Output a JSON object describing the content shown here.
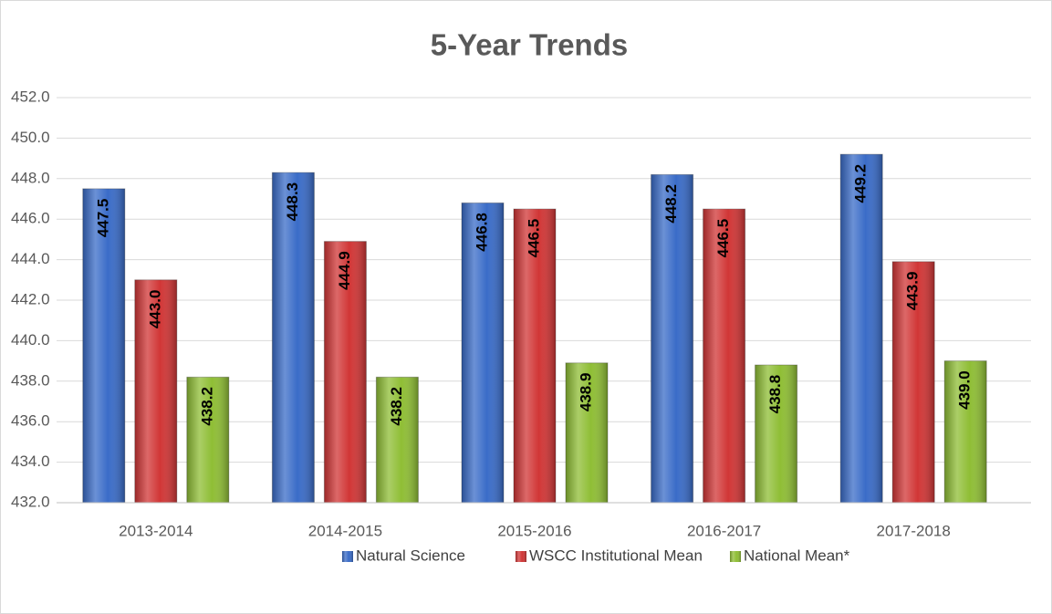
{
  "chart_data": {
    "type": "bar",
    "title": "5-Year Trends",
    "categories": [
      "2013-2014",
      "2014-2015",
      "2015-2016",
      "2016-2017",
      "2017-2018"
    ],
    "series": [
      {
        "name": "Natural Science",
        "color": "#3a6cc8",
        "values": [
          447.5,
          448.3,
          446.8,
          448.2,
          449.2
        ],
        "value_labels": [
          "447.5",
          "448.3",
          "446.8",
          "448.2",
          "449.2"
        ]
      },
      {
        "name": "WSCC Institutional Mean",
        "color": "#d13636",
        "values": [
          443.0,
          444.9,
          446.5,
          446.5,
          443.9
        ],
        "value_labels": [
          "443.0",
          "444.9",
          "446.5",
          "446.5",
          "443.9"
        ]
      },
      {
        "name": "National Mean*",
        "color": "#8fbe35",
        "values": [
          438.2,
          438.2,
          438.9,
          438.8,
          439.0
        ],
        "value_labels": [
          "438.2",
          "438.2",
          "438.9",
          "438.8",
          "439.0"
        ]
      }
    ],
    "ylim": [
      432,
      452
    ],
    "yticks": [
      {
        "value": 432,
        "label": "432.0"
      },
      {
        "value": 434,
        "label": "434.0"
      },
      {
        "value": 436,
        "label": "436.0"
      },
      {
        "value": 438,
        "label": "438.0"
      },
      {
        "value": 440,
        "label": "440.0"
      },
      {
        "value": 442,
        "label": "442.0"
      },
      {
        "value": 444,
        "label": "444.0"
      },
      {
        "value": 446,
        "label": "446.0"
      },
      {
        "value": 448,
        "label": "448.0"
      },
      {
        "value": 450,
        "label": "450.0"
      },
      {
        "value": 452,
        "label": "452.0"
      }
    ],
    "grid": true,
    "legend": "bottom"
  }
}
